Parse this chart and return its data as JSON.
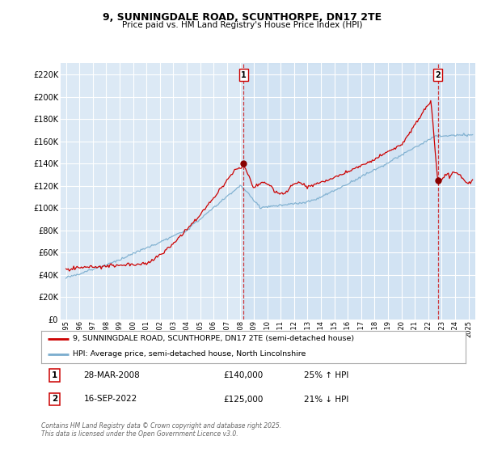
{
  "title": "9, SUNNINGDALE ROAD, SCUNTHORPE, DN17 2TE",
  "subtitle": "Price paid vs. HM Land Registry's House Price Index (HPI)",
  "line1_label": "9, SUNNINGDALE ROAD, SCUNTHORPE, DN17 2TE (semi-detached house)",
  "line2_label": "HPI: Average price, semi-detached house, North Lincolnshire",
  "line1_color": "#cc0000",
  "line2_color": "#7aadce",
  "bg_color": "#ffffff",
  "plot_bg_color": "#dce9f5",
  "grid_color": "#ffffff",
  "marker1_x": 2008.24,
  "marker1_y": 140000,
  "marker2_x": 2022.71,
  "marker2_y": 125000,
  "ylim": [
    0,
    230000
  ],
  "yticks": [
    0,
    20000,
    40000,
    60000,
    80000,
    100000,
    120000,
    140000,
    160000,
    180000,
    200000,
    220000
  ],
  "xlim": [
    1994.6,
    2025.5
  ],
  "xticks": [
    1995,
    1996,
    1997,
    1998,
    1999,
    2000,
    2001,
    2002,
    2003,
    2004,
    2005,
    2006,
    2007,
    2008,
    2009,
    2010,
    2011,
    2012,
    2013,
    2014,
    2015,
    2016,
    2017,
    2018,
    2019,
    2020,
    2021,
    2022,
    2023,
    2024,
    2025
  ],
  "footer": "Contains HM Land Registry data © Crown copyright and database right 2025.\nThis data is licensed under the Open Government Licence v3.0.",
  "table_row1": [
    "1",
    "28-MAR-2008",
    "£140,000",
    "25% ↑ HPI"
  ],
  "table_row2": [
    "2",
    "16-SEP-2022",
    "£125,000",
    "21% ↓ HPI"
  ]
}
